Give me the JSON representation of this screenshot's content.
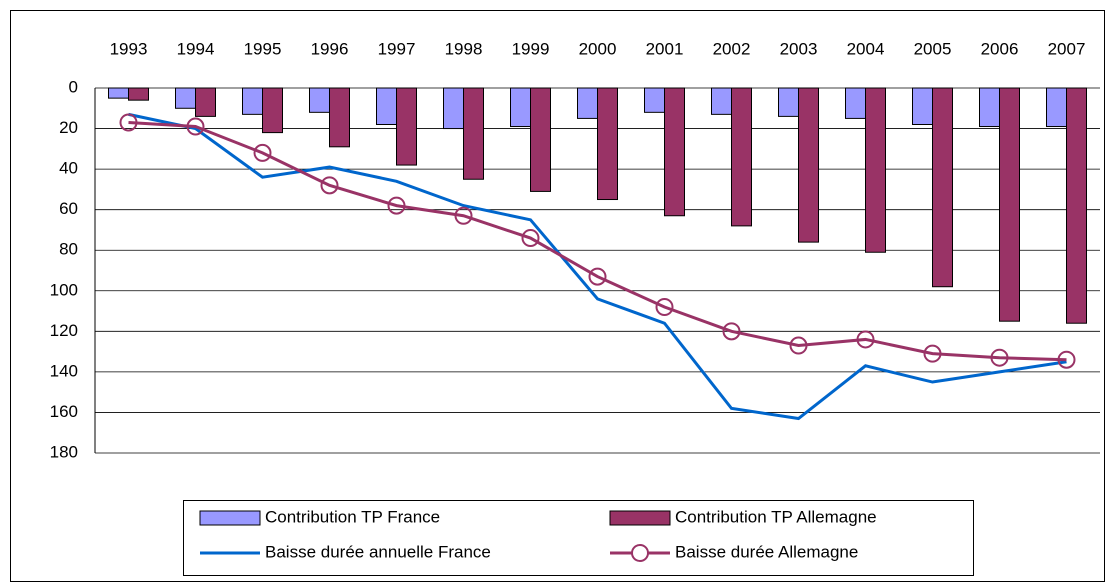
{
  "chart_data": {
    "type": "bar",
    "categories": [
      "1993",
      "1994",
      "1995",
      "1996",
      "1997",
      "1998",
      "1999",
      "2000",
      "2001",
      "2002",
      "2003",
      "2004",
      "2005",
      "2006",
      "2007"
    ],
    "series": [
      {
        "name": "Contribution TP France",
        "type": "bar",
        "color": "#9999ff",
        "values": [
          5,
          10,
          13,
          12,
          18,
          20,
          19,
          15,
          12,
          13,
          14,
          15,
          18,
          19,
          19
        ]
      },
      {
        "name": "Contribution TP Allemagne",
        "type": "bar",
        "color": "#993366",
        "values": [
          6,
          14,
          22,
          29,
          38,
          45,
          51,
          55,
          63,
          68,
          76,
          81,
          98,
          115,
          116
        ]
      },
      {
        "name": "Baisse durée annuelle France",
        "type": "line",
        "color": "#0066cc",
        "values": [
          13,
          20,
          44,
          39,
          46,
          58,
          65,
          104,
          116,
          158,
          163,
          137,
          145,
          140,
          135
        ]
      },
      {
        "name": "Baisse durée Allemagne",
        "type": "line",
        "color": "#993366",
        "marker": "circle",
        "values": [
          17,
          19,
          32,
          48,
          58,
          63,
          74,
          93,
          108,
          120,
          127,
          124,
          131,
          133,
          134
        ]
      }
    ],
    "ylim": [
      0,
      180
    ],
    "y_inverted": true,
    "yticks": [
      0,
      20,
      40,
      60,
      80,
      100,
      120,
      140,
      160,
      180
    ],
    "grid": true,
    "legend": "bottom"
  }
}
